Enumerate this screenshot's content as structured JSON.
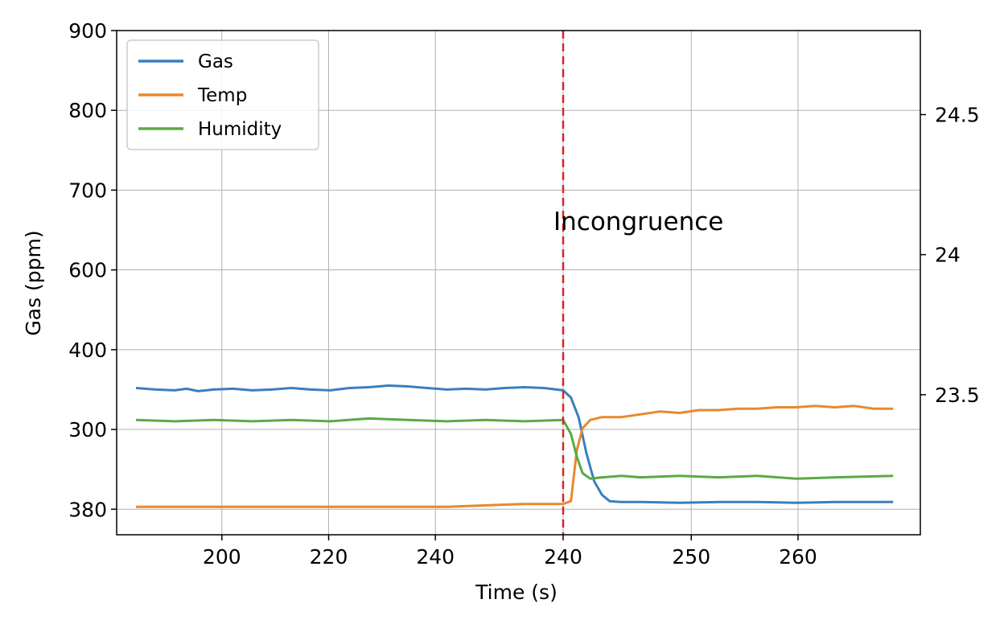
{
  "chart_data": {
    "type": "line",
    "xlabel": "Time (s)",
    "ylabel": "Gas (ppm)",
    "annotation": "Incongruence",
    "event_position": 11,
    "x_positions": [
      0,
      1,
      2,
      3,
      4,
      5,
      6,
      7,
      8,
      9,
      10,
      11,
      12,
      13,
      14,
      15,
      16,
      17,
      18,
      19,
      20,
      21,
      22,
      23,
      24,
      25,
      26,
      27,
      28,
      29,
      30,
      31,
      32,
      33,
      34,
      35,
      36,
      37,
      38,
      39,
      40,
      41,
      42,
      43,
      44,
      45,
      46,
      47,
      48,
      49,
      50,
      51,
      52,
      53,
      54,
      55,
      56,
      57,
      58,
      59,
      60,
      61,
      62,
      63,
      64,
      65,
      66,
      67,
      68,
      69,
      70
    ],
    "x_range": [
      -0.5,
      20.2
    ],
    "x_ticks": [
      {
        "pos": 2.21,
        "label": "200"
      },
      {
        "pos": 4.96,
        "label": "220"
      },
      {
        "pos": 7.71,
        "label": "240"
      },
      {
        "pos": 11.0,
        "label": "240"
      },
      {
        "pos": 14.3,
        "label": "250"
      },
      {
        "pos": 17.05,
        "label": "260"
      }
    ],
    "left_ticks": [
      {
        "pos": 0,
        "label": "380"
      },
      {
        "pos": 1,
        "label": "300"
      },
      {
        "pos": 2,
        "label": "400"
      },
      {
        "pos": 3,
        "label": "600"
      },
      {
        "pos": 4,
        "label": "700"
      },
      {
        "pos": 5,
        "label": "800"
      },
      {
        "pos": 6,
        "label": "900"
      }
    ],
    "left_range": [
      -0.32,
      6.0
    ],
    "right_ticks": [
      23.5,
      24,
      24.5
    ],
    "right_range": [
      23.0,
      24.8
    ],
    "series": [
      {
        "name": "Gas",
        "color": "#3a7fbd",
        "points": [
          [
            0.0,
            1.52
          ],
          [
            0.5,
            1.5
          ],
          [
            1.0,
            1.49
          ],
          [
            1.3,
            1.51
          ],
          [
            1.6,
            1.48
          ],
          [
            2.0,
            1.5
          ],
          [
            2.5,
            1.51
          ],
          [
            3.0,
            1.49
          ],
          [
            3.5,
            1.5
          ],
          [
            4.0,
            1.52
          ],
          [
            4.5,
            1.5
          ],
          [
            5.0,
            1.49
          ],
          [
            5.5,
            1.52
          ],
          [
            6.0,
            1.53
          ],
          [
            6.5,
            1.55
          ],
          [
            7.0,
            1.54
          ],
          [
            7.5,
            1.52
          ],
          [
            8.0,
            1.5
          ],
          [
            8.5,
            1.51
          ],
          [
            9.0,
            1.5
          ],
          [
            9.5,
            1.52
          ],
          [
            10.0,
            1.53
          ],
          [
            10.5,
            1.52
          ],
          [
            11.0,
            1.49
          ],
          [
            11.2,
            1.4
          ],
          [
            11.4,
            1.15
          ],
          [
            11.6,
            0.7
          ],
          [
            11.8,
            0.35
          ],
          [
            12.0,
            0.18
          ],
          [
            12.2,
            0.1
          ],
          [
            12.5,
            0.09
          ],
          [
            13.0,
            0.09
          ],
          [
            14.0,
            0.08
          ],
          [
            15.0,
            0.09
          ],
          [
            16.0,
            0.09
          ],
          [
            17.0,
            0.08
          ],
          [
            18.0,
            0.09
          ],
          [
            19.5,
            0.09
          ]
        ]
      },
      {
        "name": "Temp",
        "color": "#e8892b",
        "points": [
          [
            0.0,
            23.1
          ],
          [
            2.0,
            23.1
          ],
          [
            4.0,
            23.1
          ],
          [
            6.0,
            23.1
          ],
          [
            8.0,
            23.1
          ],
          [
            10.0,
            23.11
          ],
          [
            11.0,
            23.11
          ],
          [
            11.2,
            23.12
          ],
          [
            11.35,
            23.3
          ],
          [
            11.5,
            23.38
          ],
          [
            11.7,
            23.41
          ],
          [
            12.0,
            23.42
          ],
          [
            12.5,
            23.42
          ],
          [
            13.0,
            23.43
          ],
          [
            13.5,
            23.44
          ],
          [
            14.0,
            23.435
          ],
          [
            14.5,
            23.445
          ],
          [
            15.0,
            23.445
          ],
          [
            15.5,
            23.45
          ],
          [
            16.0,
            23.45
          ],
          [
            16.5,
            23.455
          ],
          [
            17.0,
            23.455
          ],
          [
            17.5,
            23.46
          ],
          [
            18.0,
            23.455
          ],
          [
            18.5,
            23.46
          ],
          [
            19.0,
            23.45
          ],
          [
            19.5,
            23.45
          ]
        ]
      },
      {
        "name": "Humidity",
        "color": "#5aaa44",
        "points": [
          [
            0.0,
            23.41
          ],
          [
            1.0,
            23.405
          ],
          [
            2.0,
            23.41
          ],
          [
            3.0,
            23.405
          ],
          [
            4.0,
            23.41
          ],
          [
            5.0,
            23.405
          ],
          [
            6.0,
            23.415
          ],
          [
            7.0,
            23.41
          ],
          [
            8.0,
            23.405
          ],
          [
            9.0,
            23.41
          ],
          [
            10.0,
            23.405
          ],
          [
            11.0,
            23.41
          ],
          [
            11.2,
            23.36
          ],
          [
            11.35,
            23.28
          ],
          [
            11.5,
            23.22
          ],
          [
            11.7,
            23.2
          ],
          [
            12.0,
            23.205
          ],
          [
            12.5,
            23.21
          ],
          [
            13.0,
            23.205
          ],
          [
            14.0,
            23.21
          ],
          [
            15.0,
            23.205
          ],
          [
            16.0,
            23.21
          ],
          [
            17.0,
            23.2
          ],
          [
            18.0,
            23.205
          ],
          [
            19.5,
            23.21
          ]
        ]
      }
    ],
    "legend_placement": "top-left",
    "grid": true
  }
}
